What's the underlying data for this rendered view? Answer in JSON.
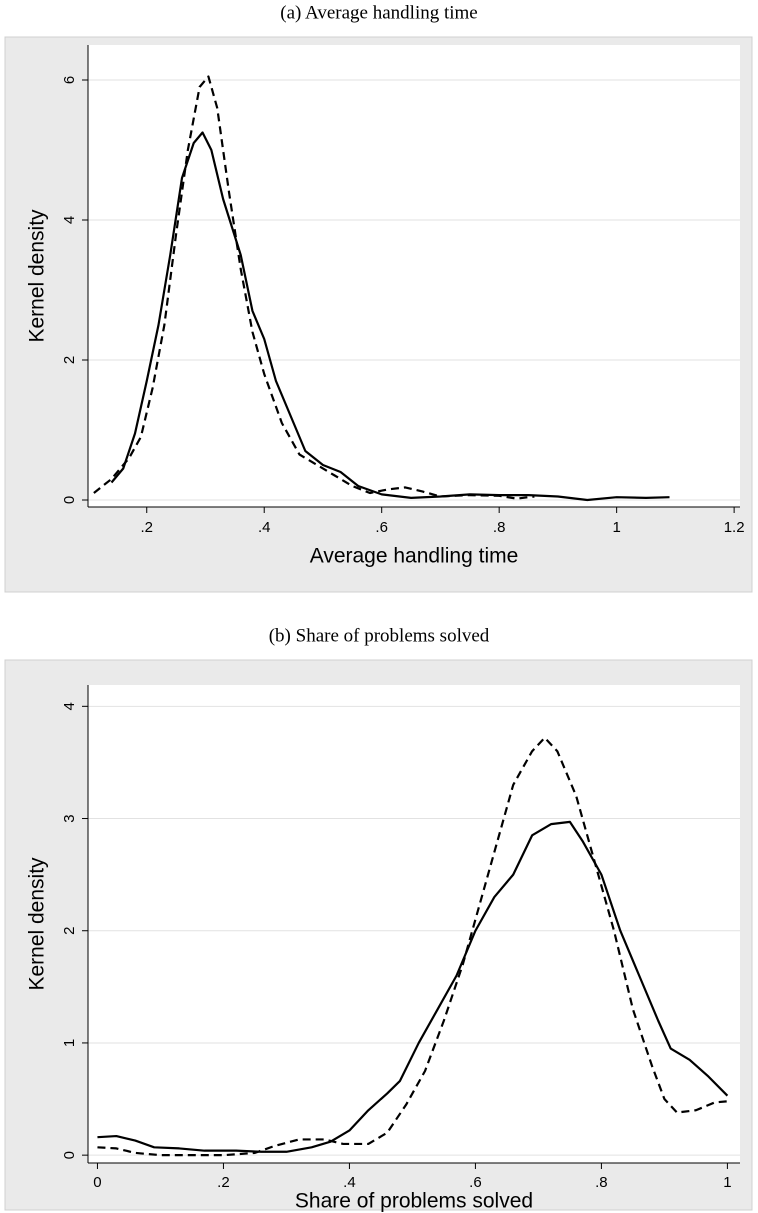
{
  "chart_data": [
    {
      "type": "line",
      "title": "(a) Average handling time",
      "xlabel": "Average handling time",
      "ylabel": "Kernel density",
      "xlim": [
        0.1,
        1.21
      ],
      "ylim": [
        -0.1,
        6.5
      ],
      "grid": true,
      "xticks": [
        {
          "value": 0.2,
          "label": ".2"
        },
        {
          "value": 0.4,
          "label": ".4"
        },
        {
          "value": 0.6,
          "label": ".6"
        },
        {
          "value": 0.8,
          "label": ".8"
        },
        1,
        1.2
      ],
      "yticks": [
        0,
        2,
        4,
        6
      ],
      "series": [
        {
          "color": "#000000",
          "dash": "solid",
          "x": [
            0.14,
            0.16,
            0.18,
            0.2,
            0.22,
            0.24,
            0.26,
            0.28,
            0.295,
            0.31,
            0.33,
            0.36,
            0.38,
            0.4,
            0.42,
            0.45,
            0.47,
            0.5,
            0.53,
            0.56,
            0.6,
            0.65,
            0.7,
            0.75,
            0.8,
            0.85,
            0.9,
            0.95,
            1.0,
            1.05,
            1.09
          ],
          "values": [
            0.25,
            0.45,
            0.95,
            1.7,
            2.5,
            3.5,
            4.6,
            5.1,
            5.25,
            5.0,
            4.3,
            3.5,
            2.7,
            2.3,
            1.7,
            1.1,
            0.7,
            0.5,
            0.4,
            0.2,
            0.08,
            0.03,
            0.05,
            0.08,
            0.07,
            0.07,
            0.05,
            0.0,
            0.04,
            0.03,
            0.04
          ]
        },
        {
          "color": "#000000",
          "dash": "dashed",
          "x": [
            0.11,
            0.14,
            0.17,
            0.19,
            0.21,
            0.23,
            0.25,
            0.27,
            0.29,
            0.305,
            0.32,
            0.34,
            0.36,
            0.38,
            0.4,
            0.43,
            0.46,
            0.49,
            0.52,
            0.55,
            0.58,
            0.61,
            0.64,
            0.67,
            0.7,
            0.75,
            0.8,
            0.83,
            0.86
          ],
          "values": [
            0.1,
            0.3,
            0.6,
            0.9,
            1.6,
            2.5,
            3.8,
            5.0,
            5.9,
            6.05,
            5.6,
            4.4,
            3.3,
            2.4,
            1.8,
            1.1,
            0.65,
            0.5,
            0.35,
            0.2,
            0.1,
            0.15,
            0.18,
            0.12,
            0.05,
            0.07,
            0.06,
            0.02,
            0.05
          ]
        }
      ]
    },
    {
      "type": "line",
      "title": "(b) Share of problems solved",
      "xlabel": "Share of problems solved",
      "ylabel": "Kernel density",
      "xlim": [
        -0.015,
        1.02
      ],
      "ylim": [
        -0.07,
        4.19
      ],
      "grid": true,
      "xticks": [
        0,
        {
          "value": 0.2,
          "label": ".2"
        },
        {
          "value": 0.4,
          "label": ".4"
        },
        {
          "value": 0.6,
          "label": ".6"
        },
        {
          "value": 0.8,
          "label": ".8"
        },
        1
      ],
      "yticks": [
        0,
        1,
        2,
        3,
        4
      ],
      "series": [
        {
          "color": "#000000",
          "dash": "solid",
          "x": [
            0,
            0.03,
            0.06,
            0.09,
            0.13,
            0.17,
            0.22,
            0.26,
            0.3,
            0.34,
            0.37,
            0.4,
            0.43,
            0.46,
            0.48,
            0.51,
            0.54,
            0.57,
            0.6,
            0.63,
            0.66,
            0.69,
            0.72,
            0.75,
            0.77,
            0.8,
            0.83,
            0.86,
            0.89,
            0.91,
            0.94,
            0.97,
            1.0
          ],
          "values": [
            0.16,
            0.17,
            0.13,
            0.07,
            0.06,
            0.04,
            0.04,
            0.03,
            0.03,
            0.07,
            0.12,
            0.22,
            0.4,
            0.55,
            0.66,
            1.0,
            1.3,
            1.6,
            2.0,
            2.3,
            2.5,
            2.85,
            2.95,
            2.97,
            2.8,
            2.5,
            2.0,
            1.6,
            1.2,
            0.95,
            0.85,
            0.7,
            0.53
          ]
        },
        {
          "color": "#000000",
          "dash": "dashed",
          "x": [
            0,
            0.03,
            0.06,
            0.1,
            0.15,
            0.2,
            0.25,
            0.28,
            0.32,
            0.36,
            0.39,
            0.43,
            0.46,
            0.49,
            0.52,
            0.55,
            0.58,
            0.61,
            0.64,
            0.66,
            0.69,
            0.71,
            0.73,
            0.76,
            0.79,
            0.82,
            0.85,
            0.88,
            0.9,
            0.92,
            0.95,
            0.98,
            1.0
          ],
          "values": [
            0.07,
            0.06,
            0.02,
            0.0,
            0.0,
            0.0,
            0.02,
            0.08,
            0.14,
            0.14,
            0.1,
            0.1,
            0.2,
            0.45,
            0.75,
            1.2,
            1.7,
            2.3,
            2.9,
            3.3,
            3.6,
            3.72,
            3.6,
            3.2,
            2.6,
            2.0,
            1.3,
            0.8,
            0.5,
            0.38,
            0.4,
            0.47,
            0.48
          ]
        }
      ]
    }
  ]
}
